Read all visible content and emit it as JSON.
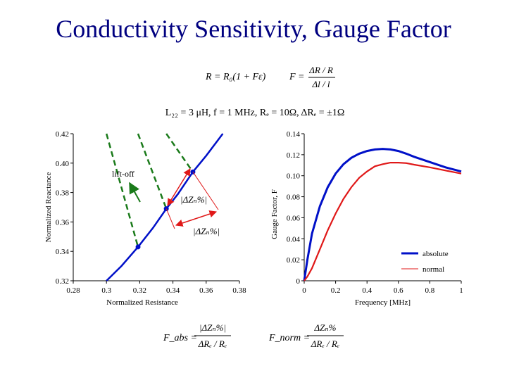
{
  "slide": {
    "title": "Conductivity Sensitivity, Gauge Factor"
  },
  "formulas": {
    "resistance": "R = R₀(1 + Fε)",
    "gauge_num": "ΔR / R",
    "gauge_den": "Δl / l",
    "gauge_lhs": "F =",
    "conditions": "L₂₂ = 3 μH,   f = 1 MHz,   Rₑ = 10Ω,   ΔRₑ = ±1Ω",
    "f_abs_lhs": "F_abs =",
    "f_abs_num": "|ΔZₙ%|",
    "f_abs_den": "ΔRₑ / Rₑ",
    "f_norm_lhs": "F_norm =",
    "f_norm_num": "ΔZₙ%",
    "f_norm_den": "ΔRₑ / Rₑ"
  },
  "chart_data": [
    {
      "type": "line",
      "xlabel": "Normalized Resistance",
      "ylabel": "Normalized Reactance",
      "xlim": [
        0.28,
        0.38
      ],
      "ylim": [
        0.32,
        0.42
      ],
      "x_ticks": [
        "0.28",
        "0.3",
        "0.32",
        "0.34",
        "0.36",
        "0.38"
      ],
      "y_ticks": [
        "0.42",
        "0.40",
        "0.38",
        "0.36",
        "0.34",
        "0.32"
      ],
      "grid": false,
      "series": [
        {
          "style": "blue-solid",
          "x": [
            0.3,
            0.309,
            0.319,
            0.328,
            0.336,
            0.343,
            0.352,
            0.36,
            0.37
          ],
          "y": [
            0.32,
            0.33,
            0.343,
            0.356,
            0.369,
            0.379,
            0.394,
            0.405,
            0.42
          ]
        },
        {
          "style": "green-dashed",
          "x": [
            0.3,
            0.319
          ],
          "y": [
            0.42,
            0.343
          ]
        },
        {
          "style": "green-dashed",
          "x": [
            0.319,
            0.336
          ],
          "y": [
            0.42,
            0.369
          ]
        },
        {
          "style": "green-dashed",
          "x": [
            0.336,
            0.352
          ],
          "y": [
            0.42,
            0.394
          ]
        }
      ],
      "points": [
        {
          "x": 0.319,
          "y": 0.343
        },
        {
          "x": 0.336,
          "y": 0.369
        },
        {
          "x": 0.352,
          "y": 0.394
        }
      ],
      "annotations": {
        "lift_off": "lift-off",
        "dz_abs": "|ΔZₙ%|",
        "dz_abs2": "|ΔZₙ%|"
      }
    },
    {
      "type": "line",
      "xlabel": "Frequency [MHz]",
      "ylabel": "Gauge Factor,  F",
      "xlim": [
        0,
        1
      ],
      "ylim": [
        0,
        0.14
      ],
      "x_ticks": [
        "0",
        "0.2",
        "0.4",
        "0.6",
        "0.8",
        "1"
      ],
      "y_ticks": [
        "0.14",
        "0.12",
        "0.10",
        "0.08",
        "0.06",
        "0.04",
        "0.02",
        "0"
      ],
      "grid": false,
      "legend": "bottom-right",
      "series": [
        {
          "name": "absolute",
          "color": "#0010c8",
          "x": [
            0.0,
            0.02,
            0.05,
            0.1,
            0.15,
            0.2,
            0.25,
            0.3,
            0.35,
            0.4,
            0.45,
            0.5,
            0.55,
            0.6,
            0.65,
            0.7,
            0.8,
            0.9,
            1.0
          ],
          "y": [
            0.0,
            0.02,
            0.045,
            0.071,
            0.089,
            0.102,
            0.111,
            0.117,
            0.121,
            0.1235,
            0.125,
            0.1255,
            0.125,
            0.1235,
            0.121,
            0.118,
            0.113,
            0.108,
            0.104
          ]
        },
        {
          "name": "normal",
          "color": "#e01818",
          "x": [
            0.0,
            0.02,
            0.05,
            0.1,
            0.15,
            0.2,
            0.25,
            0.3,
            0.35,
            0.4,
            0.45,
            0.5,
            0.55,
            0.6,
            0.65,
            0.7,
            0.8,
            0.9,
            1.0
          ],
          "y": [
            0.0,
            0.004,
            0.012,
            0.03,
            0.048,
            0.064,
            0.078,
            0.089,
            0.098,
            0.104,
            0.109,
            0.111,
            0.1125,
            0.1125,
            0.112,
            0.1105,
            0.108,
            0.105,
            0.102
          ]
        }
      ]
    }
  ],
  "colors": {
    "blue": "#0010c8",
    "red": "#e01818",
    "green": "#1a7a1a",
    "title": "#000080"
  }
}
